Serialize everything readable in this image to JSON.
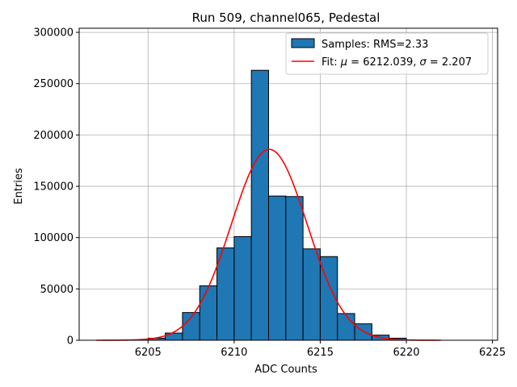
{
  "chart_data": {
    "type": "bar",
    "title": "Run 509, channel065, Pedestal",
    "xlabel": "ADC Counts",
    "ylabel": "Entries",
    "xlim": [
      6201,
      6225.3
    ],
    "ylim": [
      0,
      304000
    ],
    "xticks": [
      6205,
      6210,
      6215,
      6220,
      6225
    ],
    "yticks": [
      0,
      50000,
      100000,
      150000,
      200000,
      250000,
      300000
    ],
    "grid": true,
    "legend_position": "top-right",
    "bar_color": "#1f77b4",
    "fit_color": "#ff0000",
    "series": [
      {
        "name": "Samples: RMS=2.33",
        "type": "histogram",
        "bins": [
          {
            "x0": 6205,
            "x1": 6206,
            "count": 2000
          },
          {
            "x0": 6206,
            "x1": 6207,
            "count": 7000
          },
          {
            "x0": 6207,
            "x1": 6208,
            "count": 27000
          },
          {
            "x0": 6208,
            "x1": 6209,
            "count": 53000
          },
          {
            "x0": 6209,
            "x1": 6210,
            "count": 90000
          },
          {
            "x0": 6210,
            "x1": 6211,
            "count": 101000
          },
          {
            "x0": 6211,
            "x1": 6212,
            "count": 263000
          },
          {
            "x0": 6212,
            "x1": 6213,
            "count": 140500
          },
          {
            "x0": 6213,
            "x1": 6214,
            "count": 140000
          },
          {
            "x0": 6214,
            "x1": 6215,
            "count": 89000
          },
          {
            "x0": 6215,
            "x1": 6216,
            "count": 81500
          },
          {
            "x0": 6216,
            "x1": 6217,
            "count": 26000
          },
          {
            "x0": 6217,
            "x1": 6218,
            "count": 16000
          },
          {
            "x0": 6218,
            "x1": 6219,
            "count": 5000
          },
          {
            "x0": 6219,
            "x1": 6220,
            "count": 2000
          }
        ]
      },
      {
        "name_prefix": "Fit: ",
        "name_mu_symbol": "μ",
        "name_mu_value": " = 6212.039, ",
        "name_sigma_symbol": "σ",
        "name_sigma_value": " = 2.207",
        "type": "gaussian_fit",
        "mu": 6212.039,
        "sigma": 2.207,
        "amplitude": 186000,
        "x_range": [
          6202,
          6222
        ]
      }
    ]
  }
}
